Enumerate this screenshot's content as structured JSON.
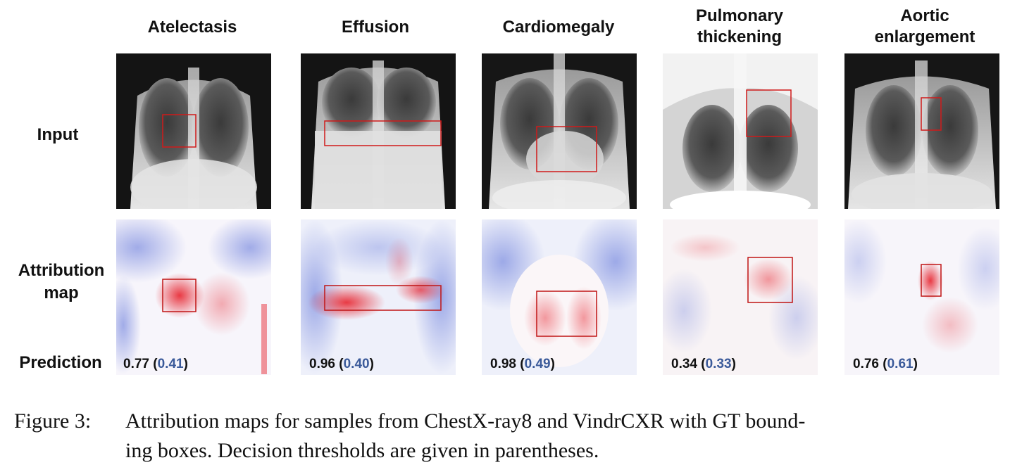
{
  "columns": [
    {
      "title": "Atelectasis",
      "prediction": "0.77",
      "threshold": "0.41"
    },
    {
      "title": "Effusion",
      "prediction": "0.96",
      "threshold": "0.40"
    },
    {
      "title": "Cardiomegaly",
      "prediction": "0.98",
      "threshold": "0.49"
    },
    {
      "title": "Pulmonary\nthickening",
      "prediction": "0.34",
      "threshold": "0.33"
    },
    {
      "title": "Aortic\nenlargement",
      "prediction": "0.76",
      "threshold": "0.61"
    }
  ],
  "rows": {
    "input": "Input",
    "attribution": "Attribution\nmap",
    "prediction": "Prediction"
  },
  "caption": {
    "label": "Figure 3:",
    "line1": "Attribution maps for samples from ChestX-ray8 and VindrCXR with GT bound-",
    "line2": "ing boxes. Decision thresholds are given in parentheses."
  },
  "colors": {
    "bbox": "#d01a1a",
    "threshold_text": "#3b5a9a",
    "attribution_positive": "#e8303a",
    "attribution_negative": "#5a6fd8"
  }
}
